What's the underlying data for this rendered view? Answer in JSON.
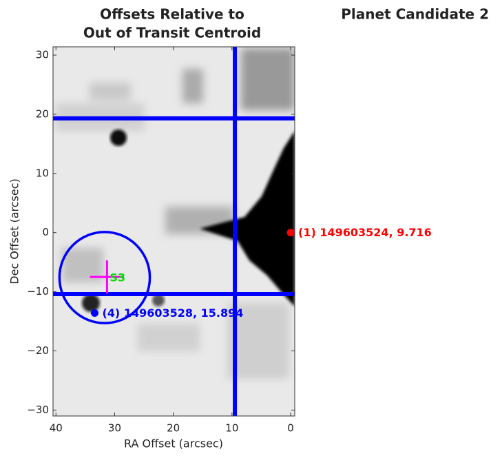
{
  "chart_data": {
    "type": "scatter",
    "title": [
      "Offsets Relative to",
      "Out of Transit Centroid"
    ],
    "panel_title": "Planet Candidate 2",
    "xlabel": "RA Offset (arcsec)",
    "ylabel": "Dec Offset (arcsec)",
    "xlim": [
      40.5,
      -0.7
    ],
    "ylim": [
      -31,
      31.4
    ],
    "xticks": [
      40,
      30,
      20,
      10,
      0
    ],
    "yticks": [
      {
        "value": -30,
        "label": "−30"
      },
      {
        "value": -20,
        "label": "−20"
      },
      {
        "value": -10,
        "label": "−10"
      },
      0,
      10,
      20,
      30
    ],
    "line_color": "#0000ff",
    "vlines": [
      9.5
    ],
    "hlines": [
      19.3,
      -10.4
    ],
    "circle": {
      "x": 31.7,
      "y": -7.6,
      "r": 7.7,
      "color": "#0000ff"
    },
    "cross": {
      "x": 31.3,
      "y": -7.5,
      "dx": 2.9,
      "dy": 2.8,
      "color": "#ff00ff",
      "label": "S3",
      "label_color": "#00dd00"
    },
    "points": [
      {
        "label": "(1) 149603524, 9.716",
        "x": 0,
        "y": 0,
        "color": "#ff0000"
      },
      {
        "label": "(4) 149603528, 15.894",
        "x": 33.4,
        "y": -13.6,
        "color": "#0000ff"
      }
    ]
  }
}
